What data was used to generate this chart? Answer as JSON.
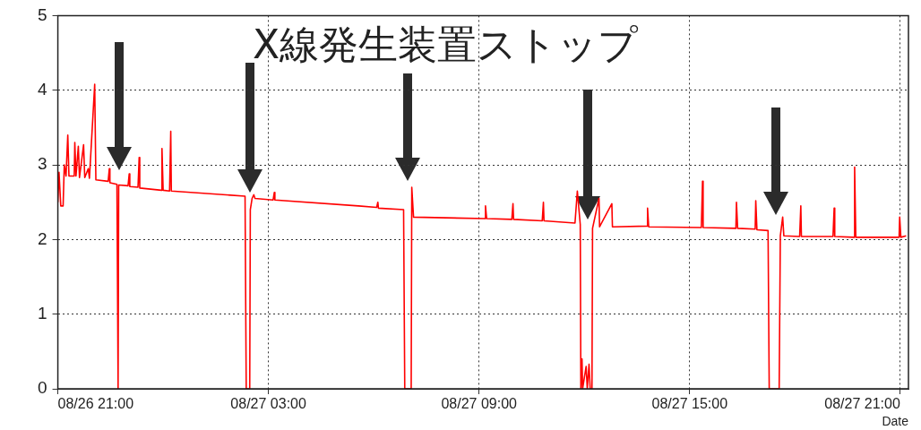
{
  "chart_data": {
    "type": "line",
    "xlabel": "Date",
    "annotations": [
      "X線発生装置ストップ"
    ],
    "xlim": [
      "--08-26T21:00",
      "--08-27T21:14"
    ],
    "xticks": [
      {
        "value": "--08-26T21:00",
        "label": "08/26 21:00"
      },
      {
        "value": "--08-27T03:00",
        "label": "08/27 03:00"
      },
      {
        "value": "--08-27T09:00",
        "label": "08/27 09:00"
      },
      {
        "value": "--08-27T15:00",
        "label": "08/27 15:00"
      },
      {
        "value": "--08-27T21:00",
        "label": "08/27 21:00"
      }
    ],
    "ylim": [
      0,
      5
    ],
    "yticks": [
      0,
      1,
      2,
      3,
      4,
      5
    ],
    "grid": true,
    "marker": "none",
    "line_style": "solid",
    "x": [
      "--08-26T21:00",
      "--08-26T21:02",
      "--08-26T21:05",
      "--08-26T21:09",
      "--08-26T21:11",
      "--08-26T21:14",
      "--08-26T21:17",
      "--08-26T21:19",
      "--08-26T21:28",
      "--08-26T21:29",
      "--08-26T21:31",
      "--08-26T21:35",
      "--08-26T21:37",
      "--08-26T21:44",
      "--08-26T21:46",
      "--08-26T21:52",
      "--08-26T21:54",
      "--08-26T22:03",
      "--08-26T22:05",
      "--08-26T22:26",
      "--08-26T22:28",
      "--08-26T22:29",
      "--08-26T22:41",
      "--08-26T22:43",
      "--08-26T22:44",
      "--08-26T23:00",
      "--08-26T23:02",
      "--08-26T23:03",
      "--08-26T23:17",
      "--08-26T23:19",
      "--08-26T23:20",
      "--08-26T23:57",
      "--08-26T23:58",
      "--08-27T00:00",
      "--08-27T00:11",
      "--08-27T00:13",
      "--08-27T00:14",
      "--08-27T02:20",
      "--08-27T02:22",
      "--08-27T02:28",
      "--08-27T02:29",
      "--08-27T02:32",
      "--08-27T02:35",
      "--08-27T02:37",
      "--08-27T03:08",
      "--08-27T03:10",
      "--08-27T03:11",
      "--08-27T05:34",
      "--08-27T06:05",
      "--08-27T06:07",
      "--08-27T06:08",
      "--08-27T06:51",
      "--08-27T06:53",
      "--08-27T07:04",
      "--08-27T07:05",
      "--08-27T07:08",
      "--08-27T09:10",
      "--08-27T09:11",
      "--08-27T09:13",
      "--08-27T09:56",
      "--08-27T09:58",
      "--08-27T09:59",
      "--08-27T10:48",
      "--08-27T10:50",
      "--08-27T10:51",
      "--08-27T11:44",
      "--08-27T11:48",
      "--08-27T11:53",
      "--08-27T11:54",
      "--08-27T11:56",
      "--08-27T11:57",
      "--08-27T12:03",
      "--08-27T12:05",
      "--08-27T12:08",
      "--08-27T12:10",
      "--08-27T12:13",
      "--08-27T12:14",
      "--08-27T12:25",
      "--08-27T12:26",
      "--08-27T12:47",
      "--08-27T12:48",
      "--08-27T13:47",
      "--08-27T13:48",
      "--08-27T13:50",
      "--08-27T15:20",
      "--08-27T15:22",
      "--08-27T15:23",
      "--08-27T16:19",
      "--08-27T16:20",
      "--08-27T16:22",
      "--08-27T16:52",
      "--08-27T16:53",
      "--08-27T16:55",
      "--08-27T17:14",
      "--08-27T17:16",
      "--08-27T17:33",
      "--08-27T17:35",
      "--08-27T17:39",
      "--08-27T17:41",
      "--08-27T18:08",
      "--08-27T18:10",
      "--08-27T18:11",
      "--08-27T19:05",
      "--08-27T19:07",
      "--08-27T19:08",
      "--08-27T19:41",
      "--08-27T19:42",
      "--08-27T19:44",
      "--08-27T20:58",
      "--08-27T20:59",
      "--08-27T21:01",
      "--08-27T21:10"
    ],
    "series": [
      {
        "color": "#ff0000",
        "values": [
          2.5,
          2.9,
          2.45,
          2.45,
          3.0,
          2.85,
          3.4,
          2.85,
          2.85,
          3.3,
          2.85,
          3.25,
          2.83,
          3.27,
          2.83,
          2.95,
          2.82,
          4.08,
          2.8,
          2.78,
          2.95,
          2.76,
          2.74,
          0,
          2.73,
          2.72,
          2.88,
          2.71,
          2.7,
          3.1,
          2.69,
          2.66,
          3.22,
          2.66,
          2.65,
          3.45,
          2.65,
          2.58,
          0,
          0,
          2.4,
          2.55,
          2.6,
          2.55,
          2.53,
          2.63,
          2.53,
          2.45,
          2.43,
          2.5,
          2.42,
          2.4,
          0,
          0,
          2.7,
          2.3,
          2.28,
          2.45,
          2.28,
          2.27,
          2.48,
          2.27,
          2.25,
          2.5,
          2.25,
          2.22,
          2.65,
          2.2,
          0,
          0.4,
          0,
          0.3,
          0,
          0.33,
          0,
          0,
          2.15,
          2.55,
          2.17,
          2.48,
          2.17,
          2.18,
          2.42,
          2.17,
          2.16,
          2.78,
          2.16,
          2.15,
          2.5,
          2.15,
          2.14,
          2.52,
          2.13,
          2.12,
          0,
          0,
          2.05,
          2.3,
          2.05,
          2.04,
          2.45,
          2.04,
          2.04,
          2.42,
          2.04,
          2.03,
          2.97,
          2.03,
          2.03,
          2.3,
          2.03,
          2.05
        ]
      }
    ]
  }
}
